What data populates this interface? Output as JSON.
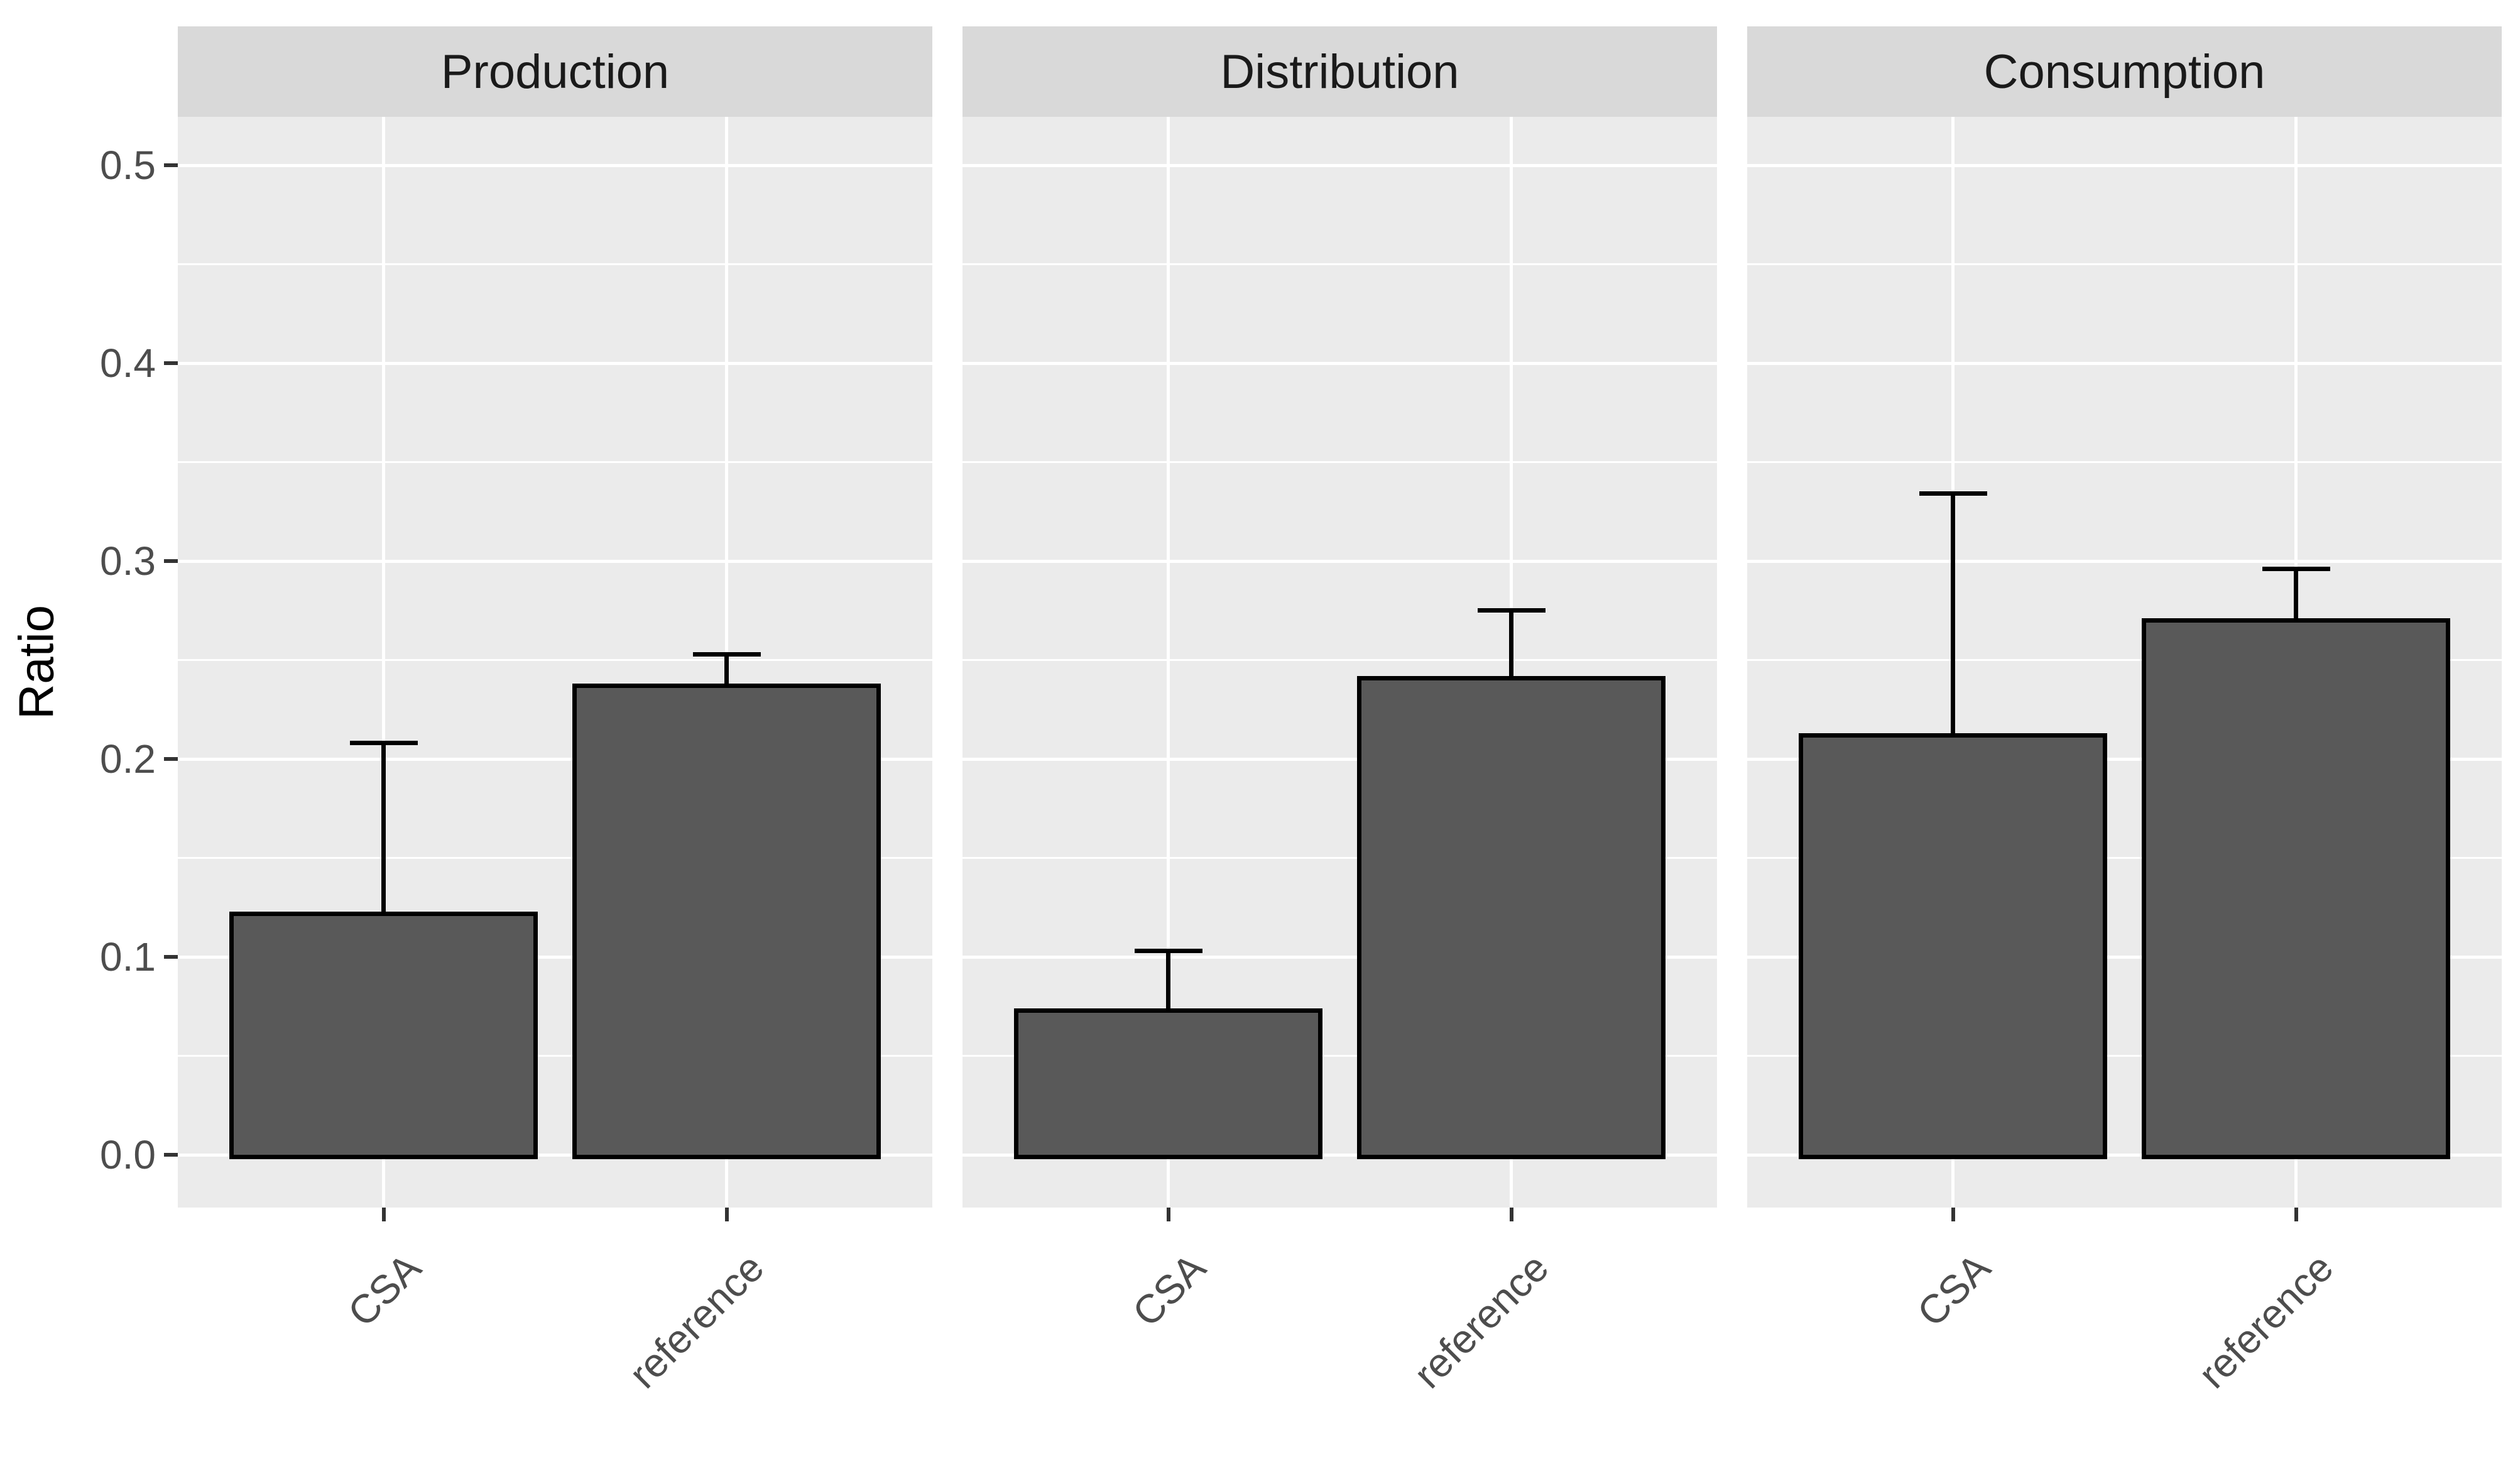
{
  "chart_data": {
    "type": "bar",
    "facets": [
      "Production",
      "Distribution",
      "Consumption"
    ],
    "categories": [
      "CSA",
      "reference"
    ],
    "series": [
      {
        "facet": "Production",
        "values": [
          0.123,
          0.238
        ],
        "error_upper": [
          0.208,
          0.253
        ]
      },
      {
        "facet": "Distribution",
        "values": [
          0.074,
          0.242
        ],
        "error_upper": [
          0.103,
          0.275
        ]
      },
      {
        "facet": "Consumption",
        "values": [
          0.213,
          0.271
        ],
        "error_upper": [
          0.334,
          0.296
        ]
      }
    ],
    "ylabel": "Ratio",
    "ylim": [
      0,
      0.5
    ],
    "y_major_ticks": [
      0.0,
      0.1,
      0.2,
      0.3,
      0.4,
      0.5
    ],
    "y_minor_ticks": [
      0.05,
      0.15,
      0.25,
      0.35,
      0.45
    ],
    "y_tick_labels": [
      "0.0",
      "0.1",
      "0.2",
      "0.3",
      "0.4",
      "0.5"
    ],
    "x_tick_angle_deg": 45,
    "legend": "none",
    "grid": "white major and minor horizontal lines, white vertical lines at category centers",
    "error_bars": "upper whisker with flat cap only"
  },
  "style": {
    "bar_fill": "#595959",
    "bar_border": "#000000",
    "panel_bg": "#EBEBEB",
    "strip_bg": "#D9D9D9",
    "grid_color": "#FFFFFF",
    "tick_color": "#333333",
    "axis_text_color": "#4D4D4D",
    "strip_text_color": "#1A1A1A",
    "background": "#FFFFFF"
  }
}
